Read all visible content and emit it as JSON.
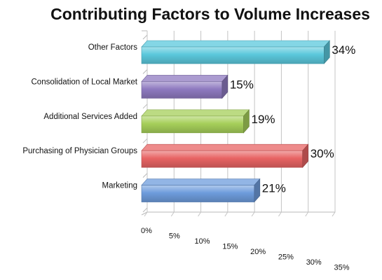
{
  "chart_data": {
    "type": "bar",
    "orientation": "horizontal",
    "style": "3d",
    "title": "Contributing Factors to Volume Increases",
    "categories": [
      "Other Factors",
      "Consolidation of Local Market",
      "Additional Services Added",
      "Purchasing of Physician Groups",
      "Marketing"
    ],
    "values": [
      34,
      15,
      19,
      30,
      21
    ],
    "data_labels": [
      "34%",
      "15%",
      "19%",
      "30%",
      "21%"
    ],
    "xlim": [
      0,
      35
    ],
    "x_ticks": [
      "0%",
      "5%",
      "10%",
      "15%",
      "20%",
      "25%",
      "30%",
      "35%"
    ],
    "grid": true,
    "legend": "none",
    "colors": [
      "#5bc8dc",
      "#8f7ac0",
      "#a6cf5a",
      "#e86464",
      "#6e9cdc"
    ]
  }
}
